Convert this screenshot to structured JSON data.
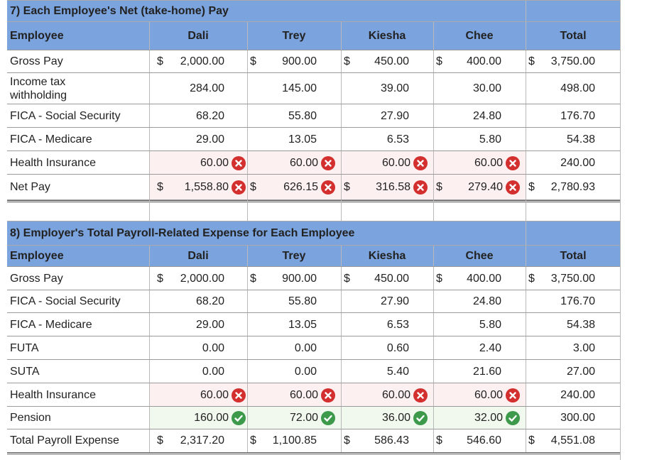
{
  "colors": {
    "header": "#7ba3dd",
    "wrong": "#d32f2f",
    "correct": "#3d9a4b"
  },
  "icons": {
    "wrong": "x-circle-icon",
    "correct": "check-circle-icon"
  },
  "section7": {
    "title": "7) Each Employee's Net (take-home) Pay",
    "headers": [
      "Employee",
      "Dali",
      "Trey",
      "Kiesha",
      "Chee",
      "Total"
    ],
    "rows": [
      {
        "label": "Gross Pay",
        "dollar": true,
        "values": [
          "2,000.00",
          "900.00",
          "450.00",
          "400.00",
          "3,750.00"
        ]
      },
      {
        "label": "Income tax withholding",
        "values": [
          "284.00",
          "145.00",
          "39.00",
          "30.00",
          "498.00"
        ]
      },
      {
        "label": "FICA - Social Security",
        "values": [
          "68.20",
          "55.80",
          "27.90",
          "24.80",
          "176.70"
        ]
      },
      {
        "label": "FICA - Medicare",
        "values": [
          "29.00",
          "13.05",
          "6.53",
          "5.80",
          "54.38"
        ]
      },
      {
        "label": "Health Insurance",
        "mark": "wrong",
        "values": [
          "60.00",
          "60.00",
          "60.00",
          "60.00",
          "240.00"
        ]
      },
      {
        "label": "Net Pay",
        "dollar": true,
        "mark": "wrong",
        "values": [
          "1,558.80",
          "626.15",
          "316.58",
          "279.40",
          "2,780.93"
        ]
      }
    ]
  },
  "section8": {
    "title": "8) Employer's Total Payroll-Related Expense for Each Employee",
    "headers": [
      "Employee",
      "Dali",
      "Trey",
      "Kiesha",
      "Chee",
      "Total"
    ],
    "rows": [
      {
        "label": "Gross Pay",
        "dollar": true,
        "values": [
          "2,000.00",
          "900.00",
          "450.00",
          "400.00",
          "3,750.00"
        ]
      },
      {
        "label": "FICA - Social Security",
        "values": [
          "68.20",
          "55.80",
          "27.90",
          "24.80",
          "176.70"
        ]
      },
      {
        "label": "FICA - Medicare",
        "values": [
          "29.00",
          "13.05",
          "6.53",
          "5.80",
          "54.38"
        ]
      },
      {
        "label": "FUTA",
        "values": [
          "0.00",
          "0.00",
          "0.60",
          "2.40",
          "3.00"
        ]
      },
      {
        "label": "SUTA",
        "values": [
          "0.00",
          "0.00",
          "5.40",
          "21.60",
          "27.00"
        ]
      },
      {
        "label": "Health Insurance",
        "mark": "wrong",
        "values": [
          "60.00",
          "60.00",
          "60.00",
          "60.00",
          "240.00"
        ]
      },
      {
        "label": "Pension",
        "mark": "correct",
        "values": [
          "160.00",
          "72.00",
          "36.00",
          "32.00",
          "300.00"
        ]
      },
      {
        "label": "Total Payroll Expense",
        "dollar": true,
        "values": [
          "2,317.20",
          "1,100.85",
          "586.43",
          "546.60",
          "4,551.08"
        ]
      }
    ]
  },
  "currency_symbol": "$"
}
